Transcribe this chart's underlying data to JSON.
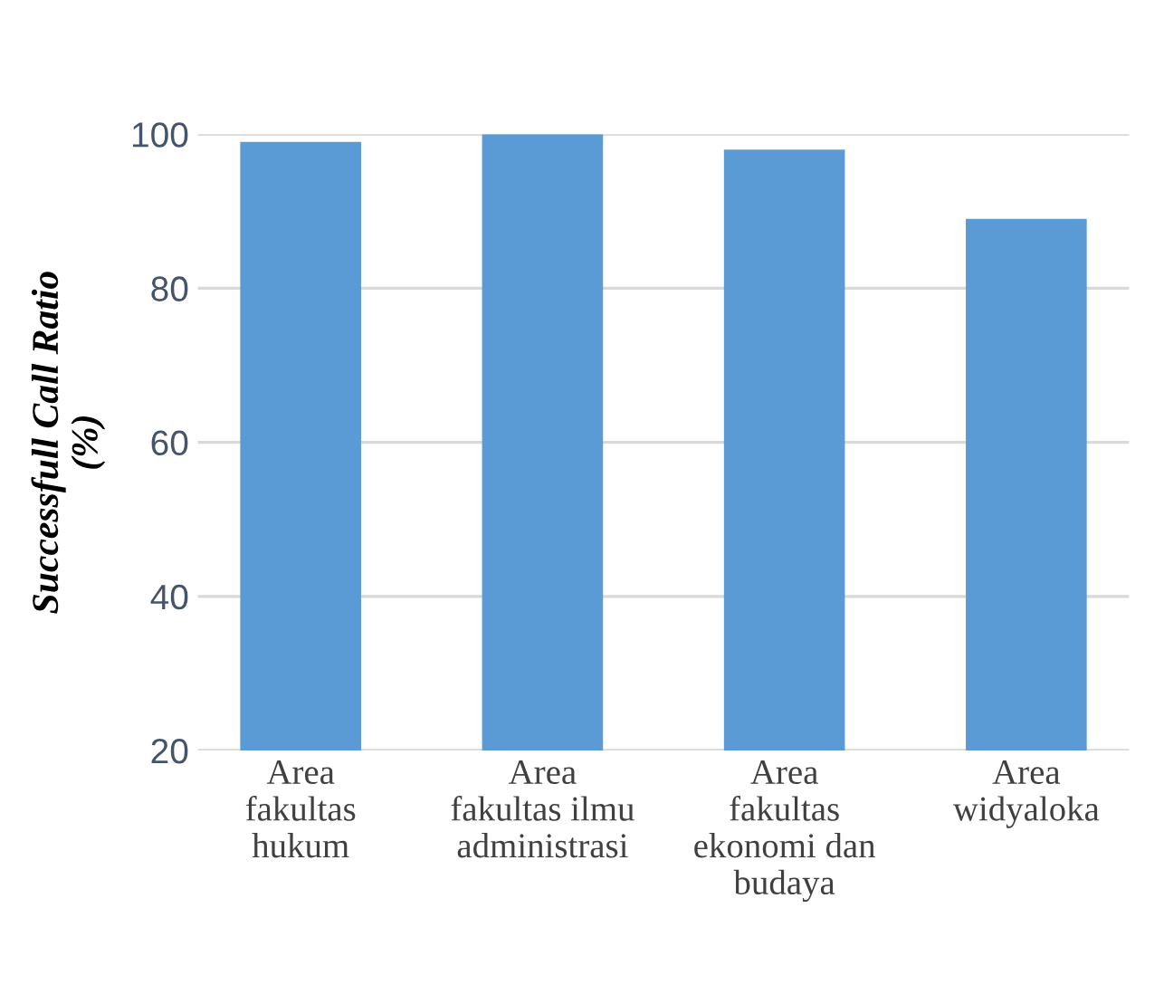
{
  "chart_data": {
    "type": "bar",
    "ylabel": "Successfull Call Ratio\n(%)",
    "categories": [
      "Area\nfakultas\nhukum",
      "Area\nfakultas ilmu\nadministrasi",
      "Area\nfakultas\nekonomi dan\nbudaya",
      "Area\nwidyaloka"
    ],
    "values": [
      99,
      100,
      98,
      89
    ],
    "color": "#5b9bd5",
    "ylim": [
      20,
      100
    ],
    "yticks": [
      20,
      40,
      60,
      80,
      100
    ],
    "grid": "y"
  }
}
